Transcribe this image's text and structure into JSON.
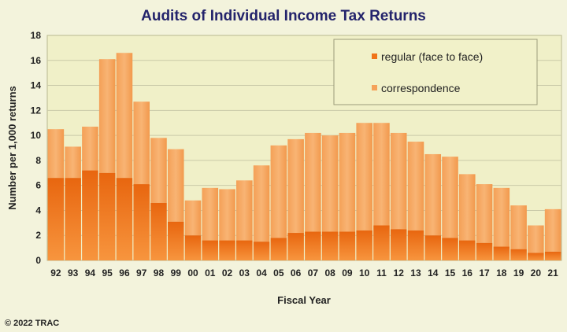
{
  "chart_data": {
    "type": "bar",
    "stacked": true,
    "title": "Audits of Individual Income Tax Returns",
    "xlabel": "Fiscal Year",
    "ylabel": "Number per 1,000 returns",
    "ylim": [
      0,
      18
    ],
    "yticks": [
      0,
      2,
      4,
      6,
      8,
      10,
      12,
      14,
      16,
      18
    ],
    "grid": true,
    "legend_position": "top-right",
    "categories": [
      "92",
      "93",
      "94",
      "95",
      "96",
      "97",
      "98",
      "99",
      "00",
      "01",
      "02",
      "03",
      "04",
      "05",
      "06",
      "07",
      "08",
      "09",
      "10",
      "11",
      "12",
      "13",
      "14",
      "15",
      "16",
      "17",
      "18",
      "19",
      "20",
      "21"
    ],
    "series": [
      {
        "name": "regular (face to face)",
        "color": "#f07318",
        "values": [
          6.6,
          6.6,
          7.2,
          7.0,
          6.6,
          6.1,
          4.6,
          3.1,
          2.0,
          1.6,
          1.6,
          1.6,
          1.5,
          1.8,
          2.2,
          2.3,
          2.3,
          2.3,
          2.4,
          2.8,
          2.5,
          2.4,
          2.0,
          1.8,
          1.6,
          1.4,
          1.1,
          0.9,
          0.6,
          0.7
        ]
      },
      {
        "name": "correspondence",
        "color": "#f5a25a",
        "values": [
          3.9,
          2.5,
          3.5,
          9.1,
          10.0,
          6.6,
          5.2,
          5.8,
          2.8,
          4.2,
          4.1,
          4.8,
          6.1,
          7.4,
          7.5,
          7.9,
          7.7,
          7.9,
          8.6,
          8.2,
          7.7,
          7.1,
          6.5,
          6.5,
          5.3,
          4.7,
          4.7,
          3.5,
          2.2,
          3.4
        ]
      }
    ]
  },
  "footer": {
    "copyright": "© 2022 TRAC"
  },
  "colors": {
    "background": "#f3f3dc",
    "plot_background": "#f0f0c8",
    "title": "#23236b",
    "grid": "#c9c9a8"
  }
}
